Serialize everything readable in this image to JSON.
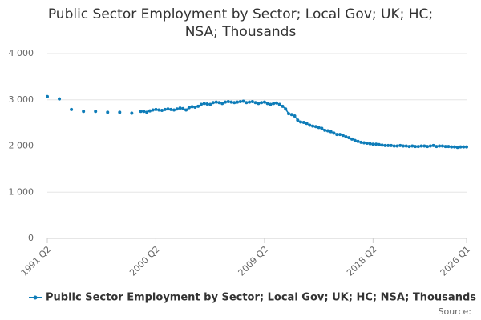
{
  "chart_data": {
    "type": "line",
    "title": "Public Sector Employment by Sector; Local Gov; UK; HC; NSA; Thousands",
    "title_lines": [
      "Public Sector Employment by Sector; Local Gov; UK; HC;",
      "NSA; Thousands"
    ],
    "source": "Source:",
    "x": [
      "1991 Q2",
      "1992 Q2",
      "1993 Q2",
      "1994 Q2",
      "1995 Q2",
      "1996 Q2",
      "1997 Q2",
      "1998 Q2",
      "1999 Q1",
      "1999 Q2",
      "1999 Q3",
      "1999 Q4",
      "2000 Q1",
      "2000 Q2",
      "2000 Q3",
      "2000 Q4",
      "2001 Q1",
      "2001 Q2",
      "2001 Q3",
      "2001 Q4",
      "2002 Q1",
      "2002 Q2",
      "2002 Q3",
      "2002 Q4",
      "2003 Q1",
      "2003 Q2",
      "2003 Q3",
      "2003 Q4",
      "2004 Q1",
      "2004 Q2",
      "2004 Q3",
      "2004 Q4",
      "2005 Q1",
      "2005 Q2",
      "2005 Q3",
      "2005 Q4",
      "2006 Q1",
      "2006 Q2",
      "2006 Q3",
      "2006 Q4",
      "2007 Q1",
      "2007 Q2",
      "2007 Q3",
      "2007 Q4",
      "2008 Q1",
      "2008 Q2",
      "2008 Q3",
      "2008 Q4",
      "2009 Q1",
      "2009 Q2",
      "2009 Q3",
      "2009 Q4",
      "2010 Q1",
      "2010 Q2",
      "2010 Q3",
      "2010 Q4",
      "2011 Q1",
      "2011 Q2",
      "2011 Q3",
      "2011 Q4",
      "2012 Q1",
      "2012 Q2",
      "2012 Q3",
      "2012 Q4",
      "2013 Q1",
      "2013 Q2",
      "2013 Q3",
      "2013 Q4",
      "2014 Q1",
      "2014 Q2",
      "2014 Q3",
      "2014 Q4",
      "2015 Q1",
      "2015 Q2",
      "2015 Q3",
      "2015 Q4",
      "2016 Q1",
      "2016 Q2",
      "2016 Q3",
      "2016 Q4",
      "2017 Q1",
      "2017 Q2",
      "2017 Q3",
      "2017 Q4",
      "2018 Q1",
      "2018 Q2",
      "2018 Q3",
      "2018 Q4",
      "2019 Q1",
      "2019 Q2",
      "2019 Q3",
      "2019 Q4",
      "2020 Q1",
      "2020 Q2",
      "2020 Q3",
      "2020 Q4",
      "2021 Q1",
      "2021 Q2",
      "2021 Q3",
      "2021 Q4",
      "2022 Q1",
      "2022 Q2",
      "2022 Q3",
      "2022 Q4",
      "2023 Q1",
      "2023 Q2",
      "2023 Q3",
      "2023 Q4",
      "2024 Q1",
      "2024 Q2",
      "2024 Q3",
      "2024 Q4",
      "2025 Q1",
      "2025 Q2",
      "2025 Q3",
      "2025 Q4",
      "2026 Q1"
    ],
    "series": [
      {
        "name": "Public Sector Employment by Sector; Local Gov; UK; HC; NSA; Thousands",
        "color": "#0e7cb8",
        "values": [
          3070,
          3020,
          2790,
          2750,
          2750,
          2730,
          2730,
          2710,
          2750,
          2750,
          2730,
          2760,
          2780,
          2790,
          2780,
          2770,
          2790,
          2800,
          2790,
          2780,
          2800,
          2820,
          2810,
          2780,
          2830,
          2850,
          2840,
          2860,
          2900,
          2920,
          2910,
          2900,
          2940,
          2950,
          2940,
          2920,
          2950,
          2960,
          2950,
          2940,
          2950,
          2960,
          2970,
          2940,
          2950,
          2960,
          2940,
          2920,
          2940,
          2950,
          2920,
          2900,
          2920,
          2930,
          2900,
          2860,
          2800,
          2700,
          2680,
          2650,
          2560,
          2520,
          2510,
          2490,
          2450,
          2430,
          2420,
          2400,
          2380,
          2340,
          2330,
          2310,
          2280,
          2250,
          2250,
          2230,
          2200,
          2180,
          2150,
          2120,
          2100,
          2080,
          2070,
          2060,
          2050,
          2040,
          2040,
          2030,
          2020,
          2010,
          2010,
          2010,
          2000,
          2000,
          2010,
          2000,
          2000,
          1990,
          2000,
          1990,
          1990,
          2000,
          2000,
          1990,
          2000,
          2010,
          1990,
          2000,
          2000,
          1990,
          1990,
          1980,
          1980,
          1970,
          1980,
          1980,
          1980
        ]
      }
    ],
    "xlim": [
      "1991 Q2",
      "2026 Q1"
    ],
    "xticks": [
      "1991 Q2",
      "2000 Q2",
      "2009 Q2",
      "2018 Q2",
      "2026 Q1"
    ],
    "ylim": [
      0,
      4000
    ],
    "yticks": [
      0,
      {
        "value": 1000,
        "label": "1 000"
      },
      {
        "value": 2000,
        "label": "2 000"
      },
      {
        "value": 3000,
        "label": "3 000"
      },
      {
        "value": 4000,
        "label": "4 000"
      }
    ],
    "grid": true
  }
}
